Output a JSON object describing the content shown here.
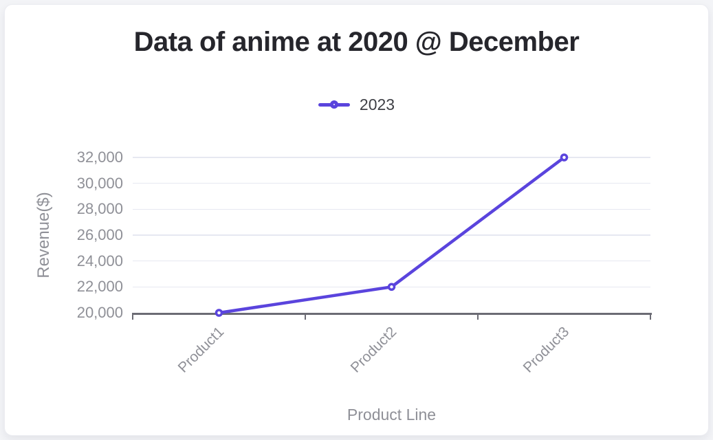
{
  "page": {
    "background": "#f3f4f7",
    "card_background": "#ffffff"
  },
  "chart_data": {
    "type": "line",
    "title": "Data of anime at 2020 @ December",
    "categories": [
      "Product1",
      "Product2",
      "Product3"
    ],
    "series": [
      {
        "name": "2023",
        "values": [
          20000,
          22000,
          32000
        ]
      }
    ],
    "xlabel": "Product Line",
    "ylabel": "Revenue($)",
    "ylim": [
      20000,
      32000
    ],
    "ytick_step": 2000,
    "ytick_labels": [
      "20,000",
      "22,000",
      "24,000",
      "26,000",
      "28,000",
      "30,000",
      "32,000"
    ],
    "grid": true,
    "legend_position": "top",
    "marker_style": "hollow-circle",
    "colors": {
      "line": "#5a44dd",
      "marker_fill": "#ffffff",
      "grid": "#e6e8f1",
      "axis": "#6b6b74",
      "tick_text": "#8f9097",
      "axis_title_text": "#8f9097",
      "legend_text": "#3f4046",
      "title_text": "#26262c"
    }
  }
}
